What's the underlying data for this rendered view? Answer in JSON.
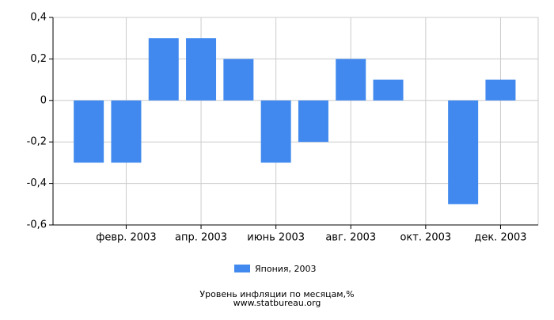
{
  "chart_data": {
    "type": "bar",
    "title": "Уровень инфляции по месяцам,%",
    "subtitle": "www.statbureau.org",
    "categories": [
      null,
      "февр. 2003",
      null,
      "апр. 2003",
      null,
      "июнь 2003",
      null,
      "авг. 2003",
      null,
      "окт. 2003",
      null,
      "дек. 2003"
    ],
    "series": [
      {
        "name": "Япония, 2003",
        "color": "#4189ee",
        "values": [
          -0.3,
          -0.3,
          0.3,
          0.3,
          0.2,
          -0.3,
          -0.2,
          0.2,
          0.1,
          0,
          -0.5,
          0.1
        ]
      }
    ],
    "ylim": [
      -0.6,
      0.4
    ],
    "yticks": [
      {
        "value": -0.6,
        "label": "-0,6"
      },
      {
        "value": -0.4,
        "label": "-0,4"
      },
      {
        "value": -0.2,
        "label": "-0,2"
      },
      0,
      {
        "value": 0.2,
        "label": "0,2"
      },
      {
        "value": 0.4,
        "label": "0,4"
      }
    ],
    "grid": true
  }
}
